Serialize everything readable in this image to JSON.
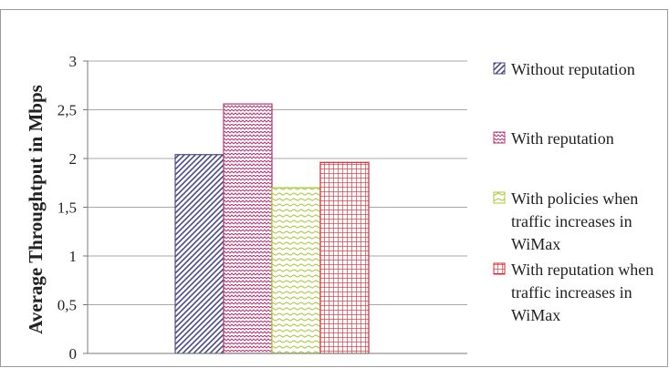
{
  "chart_data": {
    "type": "bar",
    "title": "",
    "xlabel": "",
    "ylabel": "Average Throughtput in Mbps",
    "ylim": [
      0,
      3
    ],
    "y_ticks": [
      "0",
      "0,5",
      "1",
      "1,5",
      "2",
      "2,5",
      "3"
    ],
    "y_tick_values": [
      0,
      0.5,
      1,
      1.5,
      2,
      2.5,
      3
    ],
    "grid": true,
    "legend_position": "right",
    "categories": [
      ""
    ],
    "series": [
      {
        "name": "Without reputation",
        "values": [
          2.04
        ],
        "color": "#4a4a8c",
        "pattern": "diagonal-hatch"
      },
      {
        "name": "With reputation",
        "values": [
          2.56
        ],
        "color": "#b03a78",
        "pattern": "zigzag"
      },
      {
        "name": "With policies when traffic increases in WiMax",
        "values": [
          1.7
        ],
        "color": "#a8c83a",
        "pattern": "wave"
      },
      {
        "name": "With reputation when traffic increases in WiMax",
        "values": [
          1.96
        ],
        "color": "#e0202a",
        "pattern": "grid"
      }
    ],
    "legend_lines": [
      [
        "Without reputation"
      ],
      [
        "With reputation"
      ],
      [
        "With policies when",
        "traffic increases in",
        "WiMax"
      ],
      [
        "With reputation when",
        "traffic increases in",
        "WiMax"
      ]
    ]
  }
}
